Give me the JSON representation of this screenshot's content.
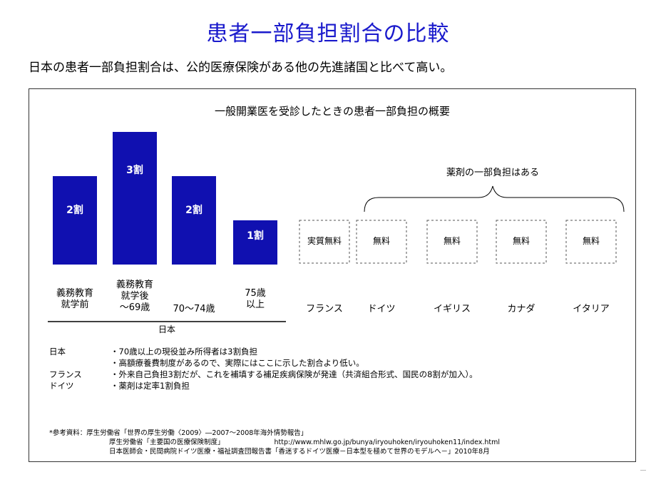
{
  "slide": {
    "title": "患者一部負担割合の比較",
    "subtitle": "日本の患者一部負担割合は、公的医療保険がある他の先進諸国と比べて高い。"
  },
  "panel": {
    "title": "一般開業医を受診したときの患者一部負担の概要"
  },
  "chart_data": {
    "type": "bar",
    "title": "一般開業医を受診したときの患者一部負担の概要",
    "bar_color": "#1010b0",
    "categories": [
      [
        "義務教育",
        "就学前"
      ],
      [
        "義務教育",
        "就学後",
        "～69歳"
      ],
      [
        "70～74歳"
      ],
      [
        "75歳",
        "以上"
      ],
      [
        "フランス"
      ],
      [
        "ドイツ"
      ],
      [
        "イギリス"
      ],
      [
        "カナダ"
      ],
      [
        "イタリア"
      ]
    ],
    "values": [
      2,
      3,
      2,
      1,
      0,
      0,
      0,
      0,
      0
    ],
    "bar_labels": [
      "2割",
      "3割",
      "2割",
      "1割",
      "",
      "",
      "",
      "",
      ""
    ],
    "box_labels": [
      "",
      "",
      "",
      "",
      "実質無料",
      "無料",
      "無料",
      "無料",
      "無料"
    ],
    "group_label": "日本",
    "bracket_label": "薬剤の一部負担はある"
  },
  "notes": [
    {
      "key": "日本",
      "text": "・70歳以上の現役並み所得者は3割負担"
    },
    {
      "key": "",
      "text": "・高額療養費制度があるので、実際にはここに示した割合より低い。"
    },
    {
      "key": "フランス",
      "text": "・外来自己負担3割だが、これを補填する補足疾病保険が発達（共済組合形式、国民の8割が加入）。"
    },
    {
      "key": "ドイツ",
      "text": "・薬剤は定率1割負担"
    }
  ],
  "references": [
    "*参考資料：厚生労働省「世界の厚生労働〈2009〉―2007～2008年海外情勢報告」",
    "厚生労働省「主要国の医療保険制度」",
    "http://www.mhlw.go.jp/bunya/iryouhoken/iryouhoken11/index.html",
    "日本医師会・民間病院ドイツ医療・福祉調査団報告書「香迷するドイツ医療－日本型を極めて世界のモデルへ－」2010年8月"
  ]
}
